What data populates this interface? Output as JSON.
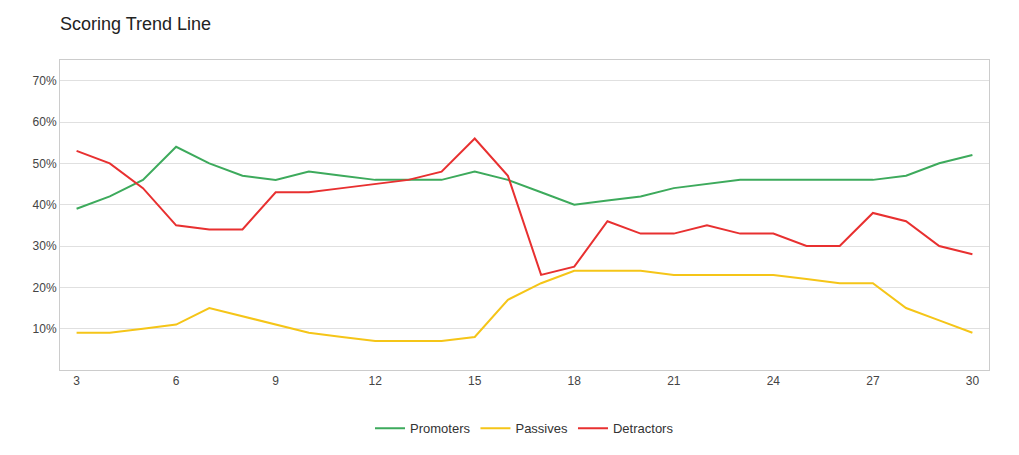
{
  "chart_data": {
    "type": "line",
    "title": "Scoring Trend Line",
    "x": [
      3,
      4,
      5,
      6,
      7,
      8,
      9,
      10,
      11,
      12,
      13,
      14,
      15,
      16,
      17,
      18,
      19,
      20,
      21,
      22,
      23,
      24,
      25,
      26,
      27,
      28,
      29,
      30
    ],
    "series": [
      {
        "name": "Promoters",
        "color": "#3daa5c",
        "values": [
          39,
          42,
          46,
          54,
          50,
          47,
          46,
          48,
          47,
          46,
          46,
          46,
          48,
          46,
          43,
          40,
          41,
          42,
          44,
          45,
          46,
          46,
          46,
          46,
          46,
          47,
          50,
          52
        ]
      },
      {
        "name": "Passives",
        "color": "#f5c518",
        "values": [
          9,
          9,
          10,
          11,
          15,
          13,
          11,
          9,
          8,
          7,
          7,
          7,
          8,
          17,
          21,
          24,
          24,
          24,
          23,
          23,
          23,
          23,
          22,
          21,
          21,
          15,
          12,
          9
        ]
      },
      {
        "name": "Detractors",
        "color": "#e83030",
        "values": [
          53,
          50,
          44,
          35,
          34,
          34,
          43,
          43,
          44,
          45,
          46,
          48,
          56,
          47,
          23,
          25,
          36,
          33,
          33,
          35,
          33,
          33,
          30,
          30,
          38,
          36,
          30,
          28
        ]
      }
    ],
    "xlim": [
      2.5,
      30.5
    ],
    "ylim": [
      0,
      75
    ],
    "xticks": [
      3,
      6,
      9,
      12,
      15,
      18,
      21,
      24,
      27,
      30
    ],
    "yticks": [
      {
        "value": 10,
        "label": "10%"
      },
      {
        "value": 20,
        "label": "20%"
      },
      {
        "value": 30,
        "label": "30%"
      },
      {
        "value": 40,
        "label": "40%"
      },
      {
        "value": 50,
        "label": "50%"
      },
      {
        "value": 60,
        "label": "60%"
      },
      {
        "value": 70,
        "label": "70%"
      }
    ],
    "grid": true,
    "legend": "bottom"
  }
}
